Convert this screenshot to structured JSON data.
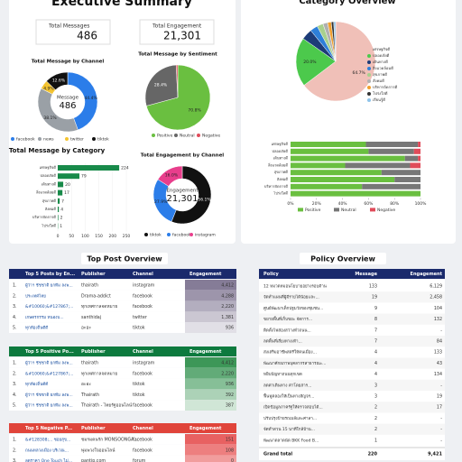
{
  "header": {
    "title": "Executive Summary",
    "right_title": "Category Overview"
  },
  "kpis": [
    {
      "label": "Total Messages",
      "value": "486"
    },
    {
      "label": "Total Engagement",
      "value": "21,301"
    }
  ],
  "channel_donut": {
    "title": "Total Message by Channel",
    "center_label": "Message",
    "center_value": "486",
    "segments": [
      {
        "name": "facebook",
        "color": "#2b7de9",
        "value": 44.4
      },
      {
        "name": "news",
        "color": "#9aa0a6",
        "value": 38.1
      },
      {
        "name": "twitter",
        "color": "#f4c430",
        "value": 4.9
      },
      {
        "name": "tiktok",
        "color": "#111111",
        "value": 12.6
      }
    ],
    "value_labels": [
      "44.4%",
      "38.1%",
      "4.9%",
      "12.6%"
    ]
  },
  "sentiment_pie": {
    "title": "Total Message by Sentiment",
    "segments": [
      {
        "name": "Positive",
        "color": "#6abf40",
        "value": 70.8
      },
      {
        "name": "Neutral",
        "color": "#666666",
        "value": 28.4
      },
      {
        "name": "Negative",
        "color": "#e04b5a",
        "value": 0.8
      }
    ],
    "value_labels": [
      "70.8%",
      "28.4%",
      null
    ]
  },
  "category_bars": {
    "title": "Total Message by Category",
    "color": "#188a4a",
    "categories": [
      "เศรษฐกิจดี",
      "ปลอดภัยดี",
      "เดินทางดี",
      "สิ่งแวดล้อมดี",
      "สุขภาพดี",
      "สังคมดี",
      "บริหารจัดการดี",
      "โปร่งใสดี"
    ],
    "values": [
      224,
      79,
      20,
      17,
      7,
      4,
      2,
      1
    ],
    "xlim": [
      0,
      250
    ],
    "xticks": [
      0,
      50,
      100,
      150,
      200,
      250
    ]
  },
  "engagement_donut": {
    "title": "Total Engagement by Channel",
    "center_label": "Engagement",
    "center_value": "21,301",
    "segments": [
      {
        "name": "tiktok",
        "color": "#111111",
        "value": 56.1
      },
      {
        "name": "facebook",
        "color": "#2b7de9",
        "value": 27.9
      },
      {
        "name": "instagram",
        "color": "#e83e8c",
        "value": 16.0
      }
    ],
    "value_labels": [
      "56.1%",
      "27.9%",
      "16.0%"
    ]
  },
  "category_pie": {
    "segments": [
      {
        "name": "เศรษฐกิจดี",
        "color": "#f0c0b8",
        "value": 64.7
      },
      {
        "name": "ปลอดภัยดี",
        "color": "#4cc94c",
        "value": 20.0
      },
      {
        "name": "เดินทางดี",
        "color": "#1d3c78",
        "value": 4.5
      },
      {
        "name": "สิ่งแวดล้อมดี",
        "color": "#2e7fd8",
        "value": 3.1
      },
      {
        "name": "สุขภาพดี",
        "color": "#a8d08d",
        "value": 2.5
      },
      {
        "name": "สังคมดี",
        "color": "#b0b0b0",
        "value": 1.9
      },
      {
        "name": "บริหารจัดการดี",
        "color": "#f0a030",
        "value": 1.5
      },
      {
        "name": "โปร่งใสดี",
        "color": "#333333",
        "value": 1.0
      },
      {
        "name": "เรียนรู้ดี",
        "color": "#8fc4ea",
        "value": 0.8
      }
    ],
    "value_labels": [
      "64.7%",
      "20.0%",
      null,
      null,
      null,
      null,
      null,
      null,
      null
    ]
  },
  "category_stack": {
    "categories": [
      "เศรษฐกิจดี",
      "ปลอดภัยดี",
      "เดินทางดี",
      "สิ่งแวดล้อมดี",
      "สุขภาพดี",
      "สังคมดี",
      "บริหารจัดการดี",
      "โปร่งใสดี"
    ],
    "series": [
      {
        "name": "Positive",
        "color": "#6abf40",
        "values": [
          58,
          60,
          88,
          42,
          70,
          80,
          55,
          100
        ]
      },
      {
        "name": "Neutral",
        "color": "#777777",
        "values": [
          40,
          35,
          10,
          50,
          30,
          20,
          45,
          0
        ]
      },
      {
        "name": "Negative",
        "color": "#e04b5a",
        "values": [
          2,
          5,
          2,
          8,
          0,
          0,
          0,
          0
        ]
      }
    ],
    "xlim": [
      0,
      100
    ],
    "xticks": [
      {
        "value": 0,
        "label": "0%"
      },
      {
        "value": 20,
        "label": "20%"
      },
      {
        "value": 40,
        "label": "40%"
      },
      {
        "value": 60,
        "label": "60%"
      },
      {
        "value": 80,
        "label": "80%"
      },
      {
        "value": 100,
        "label": "100%"
      }
    ]
  },
  "sections": {
    "posts": "Top Post Overview",
    "policy": "Policy Overview"
  },
  "post_tables": [
    {
      "columns": [
        "Top 5 Posts by En...",
        "Publisher",
        "Channel",
        "Engagement"
      ],
      "rows": [
        [
          "1.",
          "ผู้ว่าฯ ชัชชาติ ยกทีม ลงพ...",
          "thairath",
          "instagram",
          "4,412"
        ],
        [
          "2.",
          "ประเทศไทย",
          "Drama-addict",
          "facebook",
          "4,288"
        ],
        [
          "3.",
          "&#10060;&#127867;...",
          "ทุกเทศกาลจดหมาย",
          "facebook",
          "2,220"
        ],
        [
          "4.",
          "เกษตรกรรม หนองบ...",
          "santhidaj",
          "twitter",
          "1,381"
        ],
        [
          "5.",
          "ทุกท้องถิ่นดีดี",
          "อะอะ",
          "tiktok",
          "936"
        ]
      ]
    },
    {
      "columns": [
        "Top 5 Positive Po...",
        "Publisher",
        "Channel",
        "Engagement"
      ],
      "rows": [
        [
          "1.",
          "ผู้ว่าฯ ชัชชาติ ยกทีม ลงพ...",
          "thairath",
          "instagram",
          "4,412"
        ],
        [
          "2.",
          "&#10060;&#127867;...",
          "ทุกเทศกาลจดหมาย",
          "facebook",
          "2,220"
        ],
        [
          "3.",
          "ทุกท้องถิ่นดีดี",
          "อะอะ",
          "tiktok",
          "936"
        ],
        [
          "4.",
          "ผู้ว่าฯ ชัชชาติ ยกทีม ลงพ...",
          "Thairath",
          "tiktok",
          "392"
        ],
        [
          "5.",
          "ผู้ว่าฯ ชัชชาติ ยกทีม ลงพ...",
          "Thairath - ไทยรัฐออนไลน์",
          "facebook",
          "387"
        ]
      ]
    },
    {
      "columns": [
        "Top 5 Negative P...",
        "Publisher",
        "Channel",
        "Engagement"
      ],
      "rows": [
        [
          "1.",
          "&#128308;... ซอยสุข...",
          "ชมรมคนรัก MONSOONGA...",
          "facebook",
          "151"
        ],
        [
          "2.",
          "ถนนหลวงเมือง บริเวณ...",
          "พุ่มพวงใจออนไลน์",
          "facebook",
          "108"
        ],
        [
          "3.",
          "ลดราคา One Touch ไม่...",
          "pantip.com",
          "forum",
          "0"
        ]
      ]
    }
  ],
  "policy_table": {
    "columns": [
      "Policy",
      "Message",
      "Engagement"
    ],
    "rows": [
      [
        "12 หมวดหมอนโยบายอย่างรอบด้าน",
        "133",
        "6,129"
      ],
      [
        "จัดทำแผนที่ผู้มีรายได้น้อยและ...",
        "19",
        "2,458"
      ],
      [
        "ศูนย์พัฒนาเด็กปฐมวัยของชุมชน...",
        "9",
        "104"
      ],
      [
        "ขยายพื้นที่เก็บขยะ จัดการ...",
        "8",
        "132"
      ],
      [
        "ติดตั้งไฟส่องสว่างทั่วถนน...",
        "7",
        "-"
      ],
      [
        "ลดพื้นที่เสี่ยงทางเท้า...",
        "7",
        "84"
      ],
      [
        "ส่งเสริมอาชีพสตรีให้คนเมือง...",
        "4",
        "133"
      ],
      [
        "พัฒนาศักยภาพบุคลากรสาธารณะ...",
        "4",
        "43"
      ],
      [
        "หยิบปัญหาถนนทุกเขต",
        "4",
        "134"
      ],
      [
        "ลดค่าเดินทาง ค่าโดยสาร...",
        "3",
        "-"
      ],
      [
        "ฟื้นฟูคลองให้เป็นทางสัญจร...",
        "3",
        "19"
      ],
      [
        "เปิดข้อมูลภาครัฐให้ตรวจสอบได้...",
        "2",
        "17"
      ],
      [
        "ปรับปรุงป้ายรถเมล์และศาลา...",
        "2",
        "-"
      ],
      [
        "จัดทำสวน 15 นาทีใกล้บ้าน...",
        "2",
        "-"
      ],
      [
        "พัฒนาตลาดนัด BKK Food B...",
        "1",
        "-"
      ]
    ],
    "total": [
      "Grand total",
      "220",
      "9,421"
    ]
  }
}
